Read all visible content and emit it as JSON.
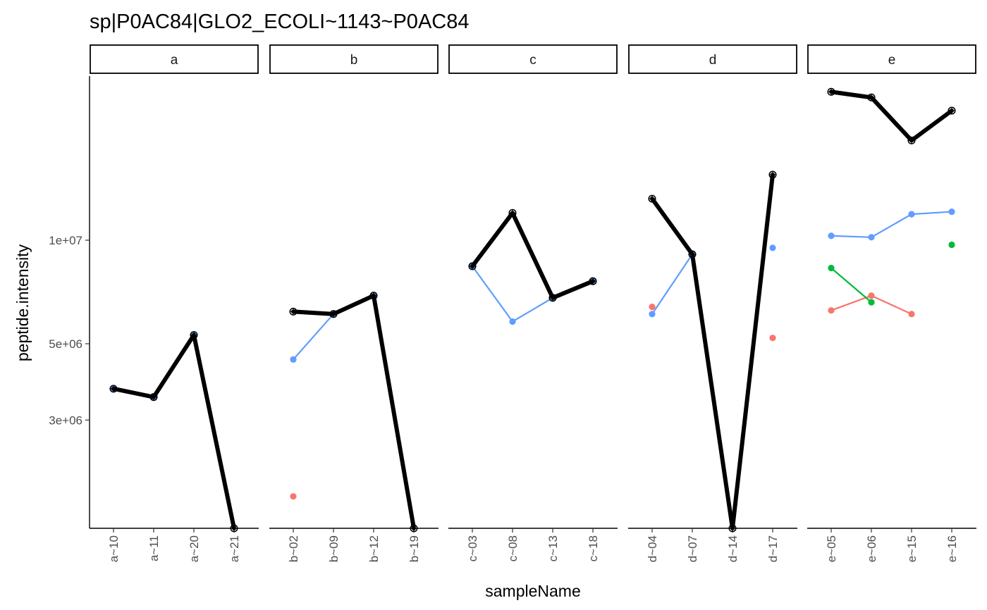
{
  "chart_data": {
    "type": "line",
    "title": "sp|P0AC84|GLO2_ECOLI~1143~P0AC84",
    "xlabel": "sampleName",
    "ylabel": "peptide.intensity",
    "y_scale": "log",
    "ylim": [
      1450000,
      30000000
    ],
    "y_ticks": [
      {
        "value": 3000000,
        "label": "3e+06"
      },
      {
        "value": 5000000,
        "label": "5e+06"
      },
      {
        "value": 10000000,
        "label": "1e+07"
      }
    ],
    "grid": false,
    "legend": "none",
    "colors": {
      "summary": "#000000",
      "blue": "#619CFF",
      "red": "#F8766D",
      "green": "#00BA38",
      "strip_border": "#000000"
    },
    "facets": [
      {
        "label": "a",
        "samples": [
          "a~10",
          "a~11",
          "a~20",
          "a~21"
        ],
        "summary": [
          3700000,
          3500000,
          5300000,
          1450000
        ],
        "peptides": [
          {
            "color": "blue",
            "values": [
              3700000,
              3500000,
              5300000,
              null
            ]
          }
        ]
      },
      {
        "label": "b",
        "samples": [
          "b~02",
          "b~09",
          "b~12",
          "b~19"
        ],
        "summary": [
          6200000,
          6100000,
          6900000,
          1450000
        ],
        "peptides": [
          {
            "color": "blue",
            "values": [
              4500000,
              6100000,
              6900000,
              null
            ]
          },
          {
            "color": "red",
            "values": [
              1800000,
              null,
              null,
              null
            ]
          }
        ]
      },
      {
        "label": "c",
        "samples": [
          "c~03",
          "c~08",
          "c~13",
          "c~18"
        ],
        "summary": [
          8400000,
          12000000,
          6800000,
          7600000
        ],
        "peptides": [
          {
            "color": "blue",
            "values": [
              8400000,
              5800000,
              6800000,
              7600000
            ]
          }
        ]
      },
      {
        "label": "d",
        "samples": [
          "d~04",
          "d~07",
          "d~14",
          "d~17"
        ],
        "summary": [
          13200000,
          9100000,
          1450000,
          15500000
        ],
        "peptides": [
          {
            "color": "blue",
            "values": [
              6100000,
              9100000,
              null,
              9500000
            ]
          },
          {
            "color": "red",
            "values": [
              6400000,
              null,
              null,
              5200000
            ]
          }
        ]
      },
      {
        "label": "e",
        "samples": [
          "e~05",
          "e~06",
          "e~15",
          "e~16"
        ],
        "summary": [
          27000000,
          26000000,
          19500000,
          23800000
        ],
        "peptides": [
          {
            "color": "blue",
            "values": [
              10300000,
              10200000,
              11900000,
              12100000
            ]
          },
          {
            "color": "red",
            "values": [
              6250000,
              6900000,
              6100000,
              null
            ]
          },
          {
            "color": "green",
            "values": [
              8300000,
              6600000,
              null,
              9700000
            ]
          }
        ]
      }
    ]
  }
}
